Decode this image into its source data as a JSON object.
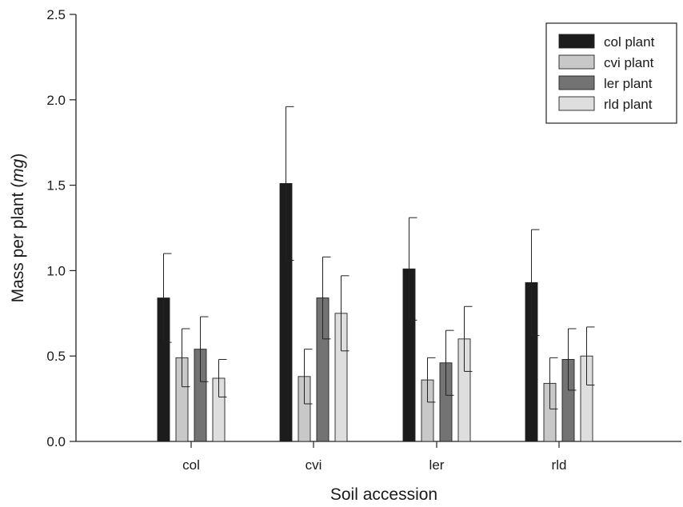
{
  "chart_data": {
    "type": "bar",
    "xlabel": "Soil accession",
    "ylabel_main": "Mass per plant (",
    "ylabel_unit": "mg",
    "ylabel_close": ")",
    "categories": [
      "col",
      "cvi",
      "ler",
      "rld"
    ],
    "ylim": [
      0,
      2.5
    ],
    "yticks": [
      "0.0",
      "0.5",
      "1.0",
      "1.5",
      "2.0",
      "2.5"
    ],
    "legend_position": "top-right",
    "series": [
      {
        "name": "col plant",
        "color": "#1c1c1c",
        "values": [
          0.84,
          1.51,
          1.01,
          0.93
        ],
        "err": [
          0.26,
          0.45,
          0.3,
          0.31
        ]
      },
      {
        "name": "cvi plant",
        "color": "#c8c8c8",
        "values": [
          0.49,
          0.38,
          0.36,
          0.34
        ],
        "err": [
          0.17,
          0.16,
          0.13,
          0.15
        ]
      },
      {
        "name": "ler plant",
        "color": "#737373",
        "values": [
          0.54,
          0.84,
          0.46,
          0.48
        ],
        "err": [
          0.19,
          0.24,
          0.19,
          0.18
        ]
      },
      {
        "name": "rld plant",
        "color": "#dedede",
        "values": [
          0.37,
          0.75,
          0.6,
          0.5
        ],
        "err": [
          0.11,
          0.22,
          0.19,
          0.17
        ]
      }
    ]
  }
}
